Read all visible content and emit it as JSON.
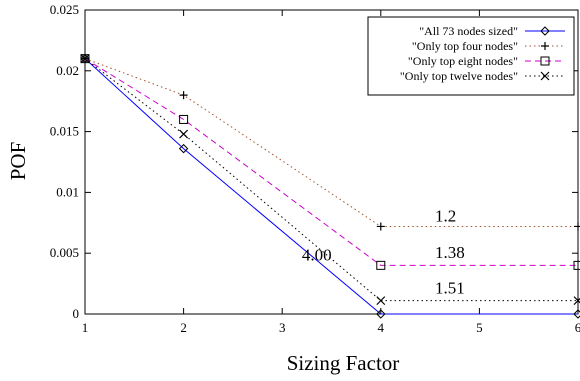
{
  "chart_data": {
    "type": "line",
    "title": "",
    "xlabel": "Sizing Factor",
    "ylabel": "POF",
    "xlim": [
      1,
      6
    ],
    "ylim": [
      0,
      0.025
    ],
    "x_ticks": [
      "1",
      "2",
      "3",
      "4",
      "5",
      "6"
    ],
    "y_ticks": [
      "0",
      "0.005",
      "0.01",
      "0.015",
      "0.02",
      "0.025"
    ],
    "grid": false,
    "legend_position": "top-right",
    "series": [
      {
        "name": "\"All 73 nodes sized\"",
        "color": "#0000ff",
        "line_style": "solid",
        "marker": "diamond",
        "x": [
          1,
          2,
          4,
          6
        ],
        "y": [
          0.021,
          0.0136,
          0.0,
          0.0
        ]
      },
      {
        "name": "\"Only top four nodes\"",
        "color": "#a0522d",
        "line_style": "dotted",
        "marker": "plus",
        "x": [
          1,
          2,
          4,
          6
        ],
        "y": [
          0.021,
          0.018,
          0.0072,
          0.0072
        ]
      },
      {
        "name": "\"Only top eight nodes\"",
        "color": "#cc00cc",
        "line_style": "dashed",
        "marker": "square",
        "x": [
          1,
          2,
          4,
          6
        ],
        "y": [
          0.021,
          0.016,
          0.004,
          0.004
        ]
      },
      {
        "name": "\"Only top twelve nodes\"",
        "color": "#000000",
        "line_style": "dotted",
        "marker": "cross",
        "x": [
          1,
          2,
          4,
          6
        ],
        "y": [
          0.021,
          0.0148,
          0.0011,
          0.0011
        ]
      }
    ],
    "annotations": [
      {
        "text": "4.00",
        "x": 3.2,
        "y": 0.0044
      },
      {
        "text": "1.2",
        "x": 4.55,
        "y": 0.0076
      },
      {
        "text": "1.38",
        "x": 4.55,
        "y": 0.0046
      },
      {
        "text": "1.51",
        "x": 4.55,
        "y": 0.0017
      }
    ]
  }
}
